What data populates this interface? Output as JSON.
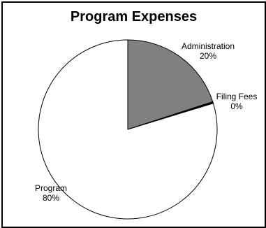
{
  "chart_data": {
    "type": "pie",
    "title": "Program Expenses",
    "slices": [
      {
        "label": "Administration",
        "pct_label": "20%",
        "value": 20,
        "color": "#808080"
      },
      {
        "label": "Filing Fees",
        "pct_label": "0%",
        "value": 0.3,
        "color": "#000000"
      },
      {
        "label": "Program",
        "pct_label": "80%",
        "value": 79.7,
        "color": "#ffffff"
      }
    ],
    "start_angle": "12 o'clock",
    "direction": "clockwise",
    "legend": "none"
  }
}
